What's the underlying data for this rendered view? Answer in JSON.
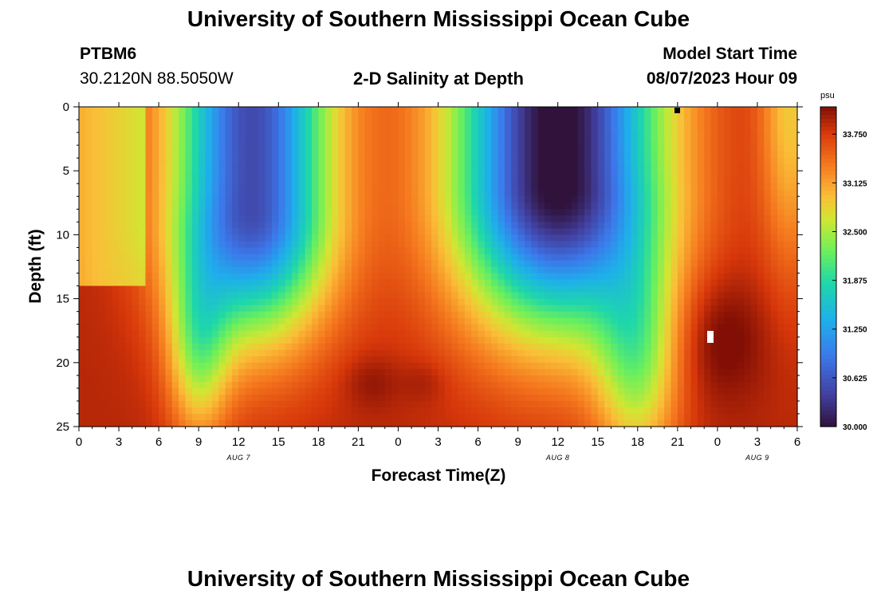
{
  "header": {
    "title": "University of Southern Mississippi Ocean Cube",
    "station_id": "PTBM6",
    "coordinates": "30.2120N  88.5050W",
    "chart_title": "2-D Salinity at Depth",
    "model_start_label": "Model Start Time",
    "model_start_value": "08/07/2023 Hour 09"
  },
  "footer": {
    "title": "University of Southern Mississippi Ocean Cube"
  },
  "chart_data": {
    "type": "heatmap",
    "title": "2-D Salinity at Depth",
    "xlabel": "Forecast Time(Z)",
    "ylabel": "Depth (ft)",
    "x_ticks": [
      "0",
      "3",
      "6",
      "9",
      "12",
      "15",
      "18",
      "21",
      "0",
      "3",
      "6",
      "9",
      "12",
      "15",
      "18",
      "21",
      "0",
      "3",
      "6"
    ],
    "x_range_hours": [
      0,
      54
    ],
    "y_ticks": [
      "0",
      "5",
      "10",
      "15",
      "20",
      "25"
    ],
    "y_range_ft": [
      0,
      25
    ],
    "y_inverted": true,
    "date_labels": [
      {
        "text": "AUG 7",
        "hour": 12
      },
      {
        "text": "AUG 8",
        "hour": 36
      },
      {
        "text": "AUG 9",
        "hour": 51
      }
    ],
    "colorbar": {
      "unit": "psu",
      "min": 30.0,
      "max": 34.1,
      "ticks": [
        "30.000",
        "30.625",
        "31.250",
        "31.875",
        "32.500",
        "33.125",
        "33.750"
      ]
    },
    "features": [
      {
        "t": 13,
        "d": 4.5,
        "value": 30.6,
        "spread_t": 3.5,
        "spread_d": 4
      },
      {
        "t": 36,
        "d": 3,
        "value": 30.05,
        "spread_t": 5,
        "spread_d": 5
      },
      {
        "t": 48,
        "d": 18,
        "value": 34.1,
        "spread_t": 2.5,
        "spread_d": 3.5
      },
      {
        "t": 22,
        "d": 21.5,
        "value": 34.0,
        "spread_t": 1.5,
        "spread_d": 1.5
      },
      {
        "t": 26,
        "d": 21.5,
        "value": 33.95,
        "spread_t": 1.2,
        "spread_d": 1.2
      }
    ]
  }
}
